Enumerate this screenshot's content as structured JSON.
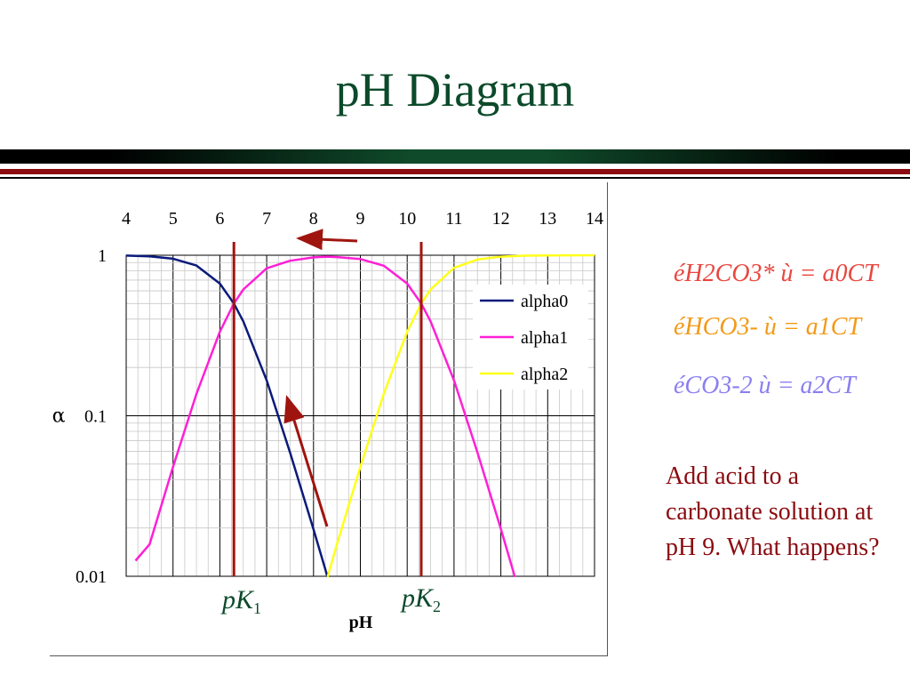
{
  "slide": {
    "title": "pH Diagram",
    "question": "Add acid to a carbonate solution at pH 9. What happens?",
    "equations": [
      {
        "text": "éH2CO3* ù = a0CT",
        "color": "#e8473f"
      },
      {
        "text": "éHCO3- ù = a1CT",
        "color": "#f29a17"
      },
      {
        "text": "éCO3-2 ù = a2CT",
        "color": "#8a7fef"
      }
    ]
  },
  "chart_data": {
    "type": "line",
    "ylabel": "α",
    "xlabel": "pH",
    "x_scale": "linear",
    "y_scale": "log",
    "xlim": [
      4,
      14
    ],
    "ylim": [
      0.01,
      1
    ],
    "x_ticks": [
      "4",
      "5",
      "6",
      "7",
      "8",
      "9",
      "10",
      "11",
      "12",
      "13",
      "14"
    ],
    "x_axis_position": "top",
    "y_ticks": [
      "1",
      "0.1",
      "0.01"
    ],
    "grid": true,
    "legend_position": "top-right",
    "pK1": 6.3,
    "pK2": 10.3,
    "pK_labels": [
      "pK1",
      "pK2"
    ],
    "series": [
      {
        "name": "alpha0",
        "color": "#0a1a7a",
        "x": [
          4,
          4.5,
          5,
          5.5,
          6,
          6.3,
          6.5,
          7,
          7.5,
          8,
          8.3
        ],
        "values": [
          0.995,
          0.985,
          0.952,
          0.863,
          0.666,
          0.5,
          0.387,
          0.166,
          0.059,
          0.0196,
          0.0099
        ]
      },
      {
        "name": "alpha1",
        "color": "#ff1fd6",
        "x": [
          4.2,
          4.5,
          5,
          5.5,
          6,
          6.3,
          6.5,
          7,
          7.5,
          8,
          8.3,
          8.5,
          9,
          9.5,
          10,
          10.3,
          10.5,
          11,
          11.5,
          12,
          12.3
        ],
        "values": [
          0.0125,
          0.0158,
          0.048,
          0.137,
          0.334,
          0.5,
          0.612,
          0.829,
          0.924,
          0.97,
          0.98,
          0.973,
          0.947,
          0.86,
          0.666,
          0.5,
          0.386,
          0.166,
          0.059,
          0.0197,
          0.0099
        ]
      },
      {
        "name": "alpha2",
        "color": "#ffff1a",
        "x": [
          8.3,
          8.5,
          9,
          9.5,
          10,
          10.3,
          10.5,
          11,
          11.5,
          12,
          12.5,
          13,
          14
        ],
        "values": [
          0.0099,
          0.0158,
          0.048,
          0.137,
          0.334,
          0.5,
          0.613,
          0.834,
          0.941,
          0.98,
          0.994,
          0.998,
          1.0
        ]
      }
    ]
  }
}
